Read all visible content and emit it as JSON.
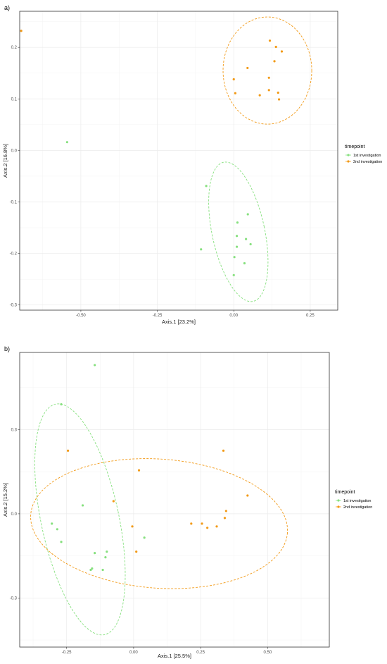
{
  "colors": {
    "first": "#86e07e",
    "second": "#f29a17",
    "grid": "#ebebeb",
    "border": "#333333"
  },
  "chart_data": [
    {
      "type": "scatter",
      "tag": "a)",
      "xlabel": "Axis.1   [23.2%]",
      "ylabel": "Axis.2   [16.8%]",
      "xlim": [
        -0.7,
        0.34
      ],
      "ylim": [
        -0.31,
        0.27
      ],
      "xticks": [
        -0.5,
        -0.25,
        0.0,
        0.25
      ],
      "xtick_labels": [
        "-0.50",
        "-0.25",
        "0.00",
        "0.25"
      ],
      "yticks": [
        0.2,
        0.1,
        0.0,
        -0.1,
        -0.2,
        -0.3
      ],
      "ytick_labels": [
        "0.2",
        "0.1",
        "0.0",
        "-0.1",
        "-0.2",
        "-0.3"
      ],
      "grid": true,
      "legend": {
        "title": "timepoint",
        "position": "right"
      },
      "series": [
        {
          "name": "1st investigation",
          "color": "#86e07e",
          "points": [
            [
              -0.545,
              0.016
            ],
            [
              -0.09,
              -0.069
            ],
            [
              0.046,
              -0.124
            ],
            [
              0.012,
              -0.14
            ],
            [
              0.01,
              -0.166
            ],
            [
              0.04,
              -0.172
            ],
            [
              0.055,
              -0.182
            ],
            [
              -0.107,
              -0.192
            ],
            [
              0.01,
              -0.187
            ],
            [
              0.002,
              -0.207
            ],
            [
              0.035,
              -0.219
            ],
            [
              0.0,
              -0.242
            ]
          ],
          "ellipse": {
            "cx": 0.015,
            "cy": -0.158,
            "rx": 0.086,
            "ry": 0.138,
            "rotate_deg": -12
          }
        },
        {
          "name": "2nd investigation",
          "color": "#f29a17",
          "points": [
            [
              -0.695,
              0.232
            ],
            [
              0.118,
              0.213
            ],
            [
              0.138,
              0.201
            ],
            [
              0.157,
              0.192
            ],
            [
              0.133,
              0.173
            ],
            [
              0.045,
              0.16
            ],
            [
              0.0,
              0.138
            ],
            [
              0.115,
              0.141
            ],
            [
              0.005,
              0.111
            ],
            [
              0.085,
              0.107
            ],
            [
              0.115,
              0.117
            ],
            [
              0.145,
              0.112
            ],
            [
              0.148,
              0.099
            ]
          ],
          "ellipse": {
            "cx": 0.11,
            "cy": 0.155,
            "rx": 0.145,
            "ry": 0.104,
            "rotate_deg": 0
          }
        }
      ]
    },
    {
      "type": "scatter",
      "tag": "b)",
      "xlabel": "Axis.1   [25.5%]",
      "ylabel": "Axis.2   [15.2%]",
      "xlim": [
        -0.425,
        0.73
      ],
      "ylim": [
        -0.475,
        0.575
      ],
      "xticks": [
        -0.25,
        0.0,
        0.25,
        0.5
      ],
      "xtick_labels": [
        "-0.25",
        "0.00",
        "0.25",
        "0.50"
      ],
      "yticks": [
        0.3,
        0.0,
        -0.3
      ],
      "ytick_labels": [
        "0.3",
        "0.0",
        "-0.3"
      ],
      "grid": true,
      "legend": {
        "title": "timepoint",
        "position": "right"
      },
      "series": [
        {
          "name": "1st investigation",
          "color": "#86e07e",
          "points": [
            [
              -0.145,
              0.53
            ],
            [
              -0.27,
              0.39
            ],
            [
              -0.19,
              0.03
            ],
            [
              -0.305,
              -0.035
            ],
            [
              -0.285,
              -0.055
            ],
            [
              -0.27,
              -0.1
            ],
            [
              -0.1,
              -0.135
            ],
            [
              -0.145,
              -0.14
            ],
            [
              -0.105,
              -0.155
            ],
            [
              -0.155,
              -0.195
            ],
            [
              -0.16,
              -0.2
            ],
            [
              -0.115,
              -0.2
            ],
            [
              0.04,
              -0.085
            ]
          ],
          "ellipse": {
            "cx": -0.2,
            "cy": -0.02,
            "rx": 0.145,
            "ry": 0.42,
            "rotate_deg": -12
          }
        },
        {
          "name": "2nd investigation",
          "color": "#f29a17",
          "points": [
            [
              -0.245,
              0.225
            ],
            [
              0.335,
              0.225
            ],
            [
              0.02,
              0.155
            ],
            [
              0.425,
              0.065
            ],
            [
              -0.075,
              0.045
            ],
            [
              0.345,
              0.01
            ],
            [
              0.34,
              -0.015
            ],
            [
              0.215,
              -0.035
            ],
            [
              0.255,
              -0.035
            ],
            [
              0.275,
              -0.05
            ],
            [
              0.31,
              -0.045
            ],
            [
              -0.005,
              -0.045
            ],
            [
              0.01,
              -0.135
            ]
          ],
          "ellipse": {
            "cx": 0.095,
            "cy": -0.035,
            "rx": 0.48,
            "ry": 0.23,
            "rotate_deg": 4
          }
        }
      ]
    }
  ]
}
